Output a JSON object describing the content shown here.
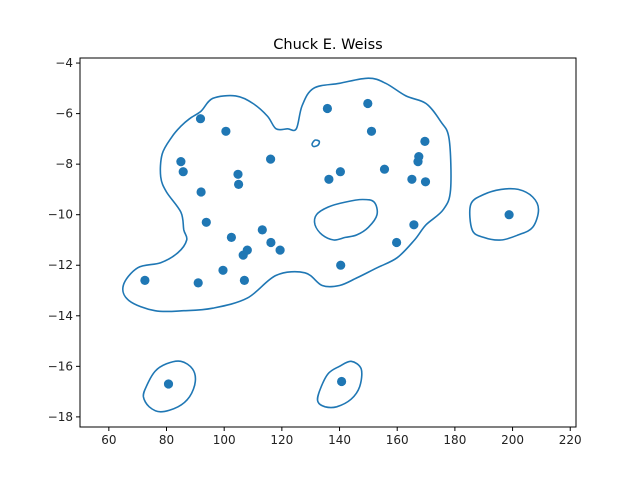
{
  "chart_data": {
    "type": "scatter",
    "title": "Chuck E. Weiss",
    "xlabel": "",
    "ylabel": "",
    "xlim": [
      50,
      222
    ],
    "ylim": [
      -18.4,
      -3.8
    ],
    "xticks": [
      60,
      80,
      100,
      120,
      140,
      160,
      180,
      200,
      220
    ],
    "yticks": [
      -4,
      -6,
      -8,
      -10,
      -12,
      -14,
      -16,
      -18
    ],
    "grid": false,
    "colors": {
      "points": "#1f77b4",
      "contour": "#1f77b4"
    },
    "series": [
      {
        "points": [
          [
            72.5,
            -12.6
          ],
          [
            80.7,
            -16.7
          ],
          [
            85.0,
            -7.9
          ],
          [
            85.8,
            -8.3
          ],
          [
            91.0,
            -12.7
          ],
          [
            91.8,
            -6.2
          ],
          [
            92.0,
            -9.1
          ],
          [
            93.8,
            -10.3
          ],
          [
            99.6,
            -12.2
          ],
          [
            100.6,
            -6.7
          ],
          [
            102.5,
            -10.9
          ],
          [
            104.8,
            -8.4
          ],
          [
            105.0,
            -8.8
          ],
          [
            106.6,
            -11.6
          ],
          [
            107.0,
            -12.6
          ],
          [
            108.0,
            -11.4
          ],
          [
            113.2,
            -10.6
          ],
          [
            116.1,
            -7.8
          ],
          [
            116.2,
            -11.1
          ],
          [
            119.4,
            -11.4
          ],
          [
            135.8,
            -5.8
          ],
          [
            136.3,
            -8.6
          ],
          [
            140.3,
            -8.3
          ],
          [
            140.4,
            -12.0
          ],
          [
            140.7,
            -16.6
          ],
          [
            149.8,
            -5.6
          ],
          [
            151.1,
            -6.7
          ],
          [
            155.6,
            -8.2
          ],
          [
            159.8,
            -11.1
          ],
          [
            165.1,
            -8.6
          ],
          [
            165.8,
            -10.4
          ],
          [
            167.2,
            -7.9
          ],
          [
            167.5,
            -7.7
          ],
          [
            169.6,
            -7.1
          ],
          [
            169.8,
            -8.7
          ],
          [
            198.8,
            -10.0
          ]
        ]
      }
    ],
    "contours": [
      [
        [
          92,
          -5.9
        ],
        [
          96,
          -5.4
        ],
        [
          104,
          -5.3
        ],
        [
          110,
          -5.6
        ],
        [
          115,
          -6.1
        ],
        [
          118,
          -6.6
        ],
        [
          122,
          -6.6
        ],
        [
          125,
          -6.6
        ],
        [
          127,
          -5.7
        ],
        [
          131,
          -5.0
        ],
        [
          140,
          -4.8
        ],
        [
          150,
          -4.6
        ],
        [
          156,
          -4.8
        ],
        [
          163,
          -5.3
        ],
        [
          170,
          -5.6
        ],
        [
          175,
          -6.3
        ],
        [
          178,
          -7.0
        ],
        [
          178.5,
          -9.0
        ],
        [
          176,
          -9.8
        ],
        [
          170,
          -10.4
        ],
        [
          166,
          -11.0
        ],
        [
          160,
          -11.7
        ],
        [
          153,
          -12.1
        ],
        [
          146,
          -12.5
        ],
        [
          140,
          -12.8
        ],
        [
          134,
          -12.8
        ],
        [
          128,
          -12.3
        ],
        [
          118,
          -12.4
        ],
        [
          108,
          -13.3
        ],
        [
          96,
          -13.7
        ],
        [
          86,
          -13.8
        ],
        [
          76,
          -13.8
        ],
        [
          67,
          -13.4
        ],
        [
          65,
          -12.8
        ],
        [
          70,
          -12.1
        ],
        [
          78,
          -11.9
        ],
        [
          84,
          -11.5
        ],
        [
          87,
          -11.0
        ],
        [
          86,
          -10.6
        ],
        [
          85,
          -9.9
        ],
        [
          80,
          -9.1
        ],
        [
          78,
          -8.5
        ],
        [
          78.5,
          -7.6
        ],
        [
          82,
          -6.9
        ],
        [
          85,
          -6.5
        ],
        [
          88,
          -6.2
        ],
        [
          92,
          -5.9
        ]
      ],
      [
        [
          132,
          -10.0
        ],
        [
          136,
          -9.7
        ],
        [
          142,
          -9.5
        ],
        [
          148,
          -9.4
        ],
        [
          152,
          -9.5
        ],
        [
          153,
          -10.0
        ],
        [
          150,
          -10.5
        ],
        [
          146,
          -10.8
        ],
        [
          142,
          -10.9
        ],
        [
          138,
          -11.0
        ],
        [
          134,
          -10.8
        ],
        [
          131.5,
          -10.4
        ],
        [
          132,
          -10.0
        ]
      ],
      [
        [
          130.5,
          -7.2
        ],
        [
          131.5,
          -7.05
        ],
        [
          133,
          -7.1
        ],
        [
          132.5,
          -7.25
        ],
        [
          131,
          -7.3
        ],
        [
          130.5,
          -7.2
        ]
      ],
      [
        [
          185.5,
          -9.6
        ],
        [
          190,
          -9.2
        ],
        [
          196,
          -9.0
        ],
        [
          202,
          -9.0
        ],
        [
          207,
          -9.3
        ],
        [
          209,
          -9.8
        ],
        [
          207,
          -10.5
        ],
        [
          202,
          -10.8
        ],
        [
          196,
          -11.0
        ],
        [
          190,
          -10.9
        ],
        [
          186,
          -10.6
        ],
        [
          185.5,
          -9.6
        ]
      ],
      [
        [
          73,
          -16.8
        ],
        [
          76,
          -16.2
        ],
        [
          80,
          -15.9
        ],
        [
          85,
          -15.8
        ],
        [
          89,
          -16.1
        ],
        [
          90,
          -16.6
        ],
        [
          88,
          -17.2
        ],
        [
          84,
          -17.6
        ],
        [
          78,
          -17.8
        ],
        [
          74,
          -17.6
        ],
        [
          72,
          -17.2
        ],
        [
          73,
          -16.8
        ]
      ],
      [
        [
          133,
          -17.0
        ],
        [
          136,
          -16.3
        ],
        [
          140,
          -16.0
        ],
        [
          144,
          -15.8
        ],
        [
          147.5,
          -16.1
        ],
        [
          147,
          -16.8
        ],
        [
          144,
          -17.3
        ],
        [
          139,
          -17.6
        ],
        [
          135,
          -17.6
        ],
        [
          132.5,
          -17.4
        ],
        [
          133,
          -17.0
        ]
      ]
    ]
  }
}
